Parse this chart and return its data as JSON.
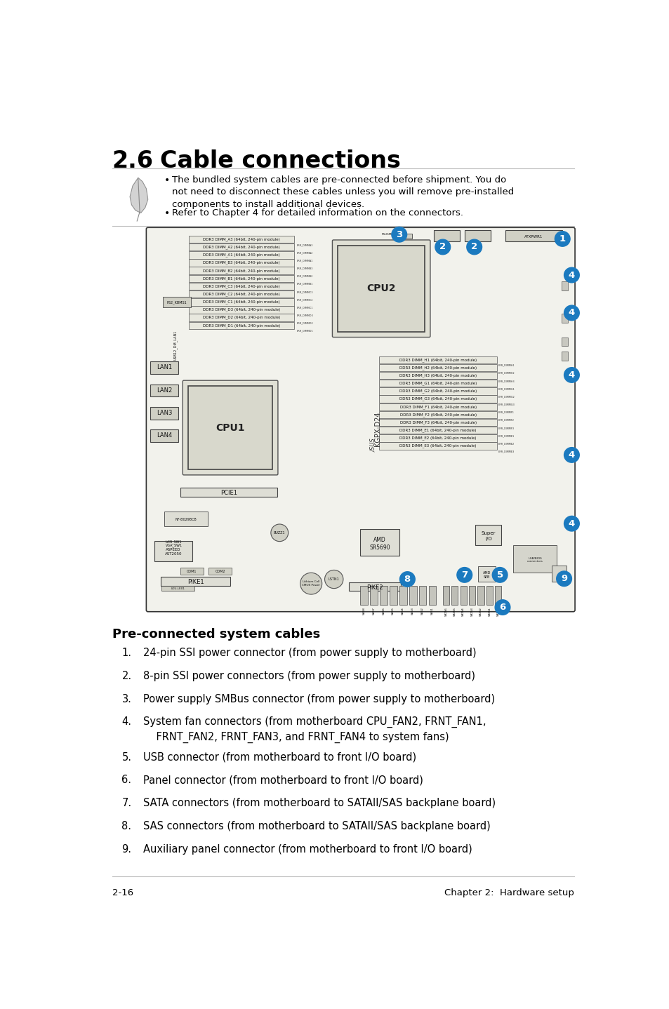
{
  "title_num": "2.6",
  "title_text": "Cable connections",
  "note1": "The bundled system cables are pre-connected before shipment. You do\nnot need to disconnect these cables unless you will remove pre-installed\ncomponents to install additional devices.",
  "note2": "Refer to Chapter 4 for detailed information on the connectors.",
  "section_title": "Pre-connected system cables",
  "list_items": [
    "24-pin SSI power connector (from power supply to motherboard)",
    "8-pin SSI power connectors (from power supply to motherboard)",
    "Power supply SMBus connector (from power supply to motherboard)",
    "System fan connectors (from motherboard CPU_FAN2, FRNT_FAN1,\n    FRNT_FAN2, FRNT_FAN3, and FRNT_FAN4 to system fans)",
    "USB connector (from motherboard to front I/O board)",
    "Panel connector (from motherboard to front I/O board)",
    "SATA connectors (from motherboard to SATAII/SAS backplane board)",
    "SAS connectors (from motherboard to SATAII/SAS backplane board)",
    "Auxiliary panel connector (from motherboard to front I/O board)"
  ],
  "footer_left": "2-16",
  "footer_right": "Chapter 2:  Hardware setup",
  "bg_color": "#ffffff",
  "text_color": "#000000",
  "circle_color": "#1b7abf",
  "board_bg": "#f2f2ec",
  "slot_bg": "#e8e8de",
  "slot_border": "#555555",
  "cpu_bg": "#d8d8cc",
  "dimm_left": [
    "DDR3 DIMM_A3 (64bit, 240-pin module)",
    "DDR3 DIMM_A2 (64bit, 240-pin module)",
    "DDR3 DIMM_A1 (64bit, 240-pin module)",
    "DDR3 DIMM_B3 (64bit, 240-pin module)",
    "DDR3 DIMM_B2 (64bit, 240-pin module)",
    "DDR3 DIMM_B1 (64bit, 240-pin module)",
    "DDR3 DIMM_C3 (64bit, 240-pin module)",
    "DDR3 DIMM_C2 (64bit, 240-pin module)",
    "DDR3 DIMM_C1 (64bit, 240-pin module)",
    "DDR3 DIMM_D3 (64bit, 240-pin module)",
    "DDR3 DIMM_D2 (64bit, 240-pin module)",
    "DDR3 DIMM_D1 (64bit, 240-pin module)"
  ],
  "dimm_right": [
    "DDR3 DIMM_H1 (64bit, 240-pin module)",
    "DDR3 DIMM_H2 (64bit, 240-pin module)",
    "DDR3 DIMM_H3 (64bit, 240-pin module)",
    "DDR3 DIMM_G1 (64bit, 240-pin module)",
    "DDR3 DIMM_G2 (64bit, 240-pin module)",
    "DDR3 DIMM_G3 (64bit, 240-pin module)",
    "DDR3 DIMM_F1 (64bit, 240-pin module)",
    "DDR3 DIMM_F2 (64bit, 240-pin module)",
    "DDR3 DIMM_F3 (64bit, 240-pin module)",
    "DDR3 DIMM_E1 (64bit, 240-pin module)",
    "DDR3 DIMM_E2 (64bit, 240-pin module)",
    "DDR3 DIMM_E3 (64bit, 240-pin module)"
  ]
}
